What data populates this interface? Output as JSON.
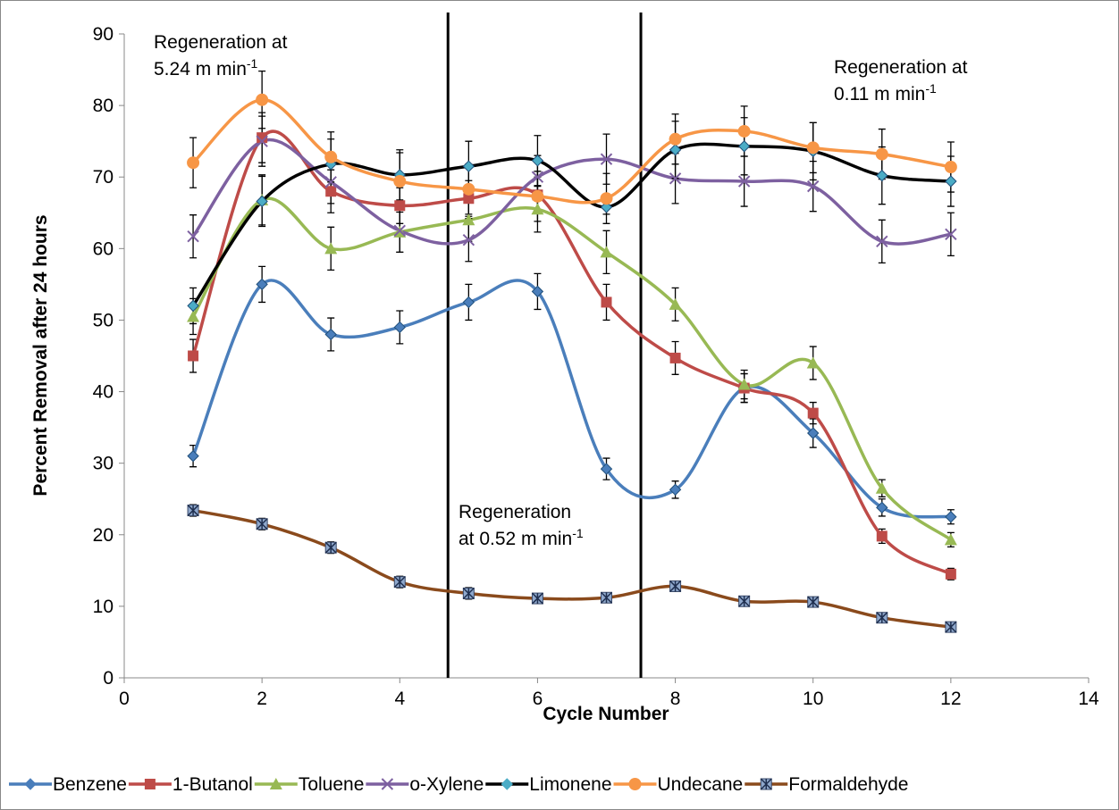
{
  "chart_data": {
    "type": "line",
    "smooth": true,
    "x_label": "Cycle Number",
    "y_label": "Percent Removal after 24 hours",
    "xlim": [
      0,
      14
    ],
    "xticks": [
      0,
      2,
      4,
      6,
      8,
      10,
      12,
      14
    ],
    "ylim": [
      0,
      90
    ],
    "yticks": [
      0,
      10,
      20,
      30,
      40,
      50,
      60,
      70,
      80,
      90
    ],
    "x": [
      1,
      2,
      3,
      4,
      5,
      6,
      7,
      8,
      9,
      10,
      11,
      12
    ],
    "legend": "bottom",
    "vlines": [
      4.7,
      7.5
    ],
    "annotations": [
      {
        "lines": [
          "Regeneration at",
          "5.24 m min"
        ],
        "superscript": "-1"
      },
      {
        "lines": [
          "Regeneration",
          "at 0.52 m min"
        ],
        "superscript": "-1"
      },
      {
        "lines": [
          "Regeneration at",
          "0.11 m min"
        ],
        "superscript": "-1"
      }
    ],
    "series": [
      {
        "name": "Benzene",
        "color": "#4a7ebb",
        "marker": "diamond",
        "marker_color": "#4a7ebb",
        "values": [
          31,
          55,
          48,
          49,
          52.5,
          54,
          29.2,
          26.3,
          40.5,
          34.2,
          23.8,
          22.5
        ],
        "errors": [
          1.5,
          2.5,
          2.3,
          2.3,
          2.5,
          2.5,
          1.5,
          1.2,
          2,
          2,
          1.2,
          1
        ]
      },
      {
        "name": "1-Butanol",
        "color": "#be4b48",
        "marker": "square",
        "marker_color": "#be4b48",
        "values": [
          45,
          75.5,
          68,
          66,
          67,
          67.5,
          52.5,
          44.7,
          40.5,
          37,
          19.8,
          14.5
        ],
        "errors": [
          2.3,
          3.5,
          3,
          2.5,
          2.5,
          2.5,
          2.5,
          2.3,
          2,
          1.5,
          1,
          0.8
        ]
      },
      {
        "name": "Toluene",
        "color": "#98b954",
        "marker": "triangle",
        "marker_color": "#98b954",
        "values": [
          50.5,
          66.8,
          60,
          62.3,
          64,
          65.5,
          59.5,
          52.2,
          41,
          44,
          26.5,
          19.3
        ],
        "errors": [
          2.5,
          3.5,
          3,
          2.8,
          3,
          3.2,
          3,
          2.3,
          2,
          2.3,
          1.2,
          1
        ]
      },
      {
        "name": "o-Xylene",
        "color": "#7d60a0",
        "marker": "x",
        "marker_color": "#7d60a0",
        "values": [
          61.7,
          75,
          69.3,
          62.5,
          61.2,
          70,
          72.5,
          69.8,
          69.4,
          68.7,
          61,
          62
        ],
        "errors": [
          3,
          3.5,
          3,
          3,
          3,
          3,
          3.5,
          3.5,
          3.5,
          3.5,
          3,
          3
        ]
      },
      {
        "name": "Limonene",
        "color": "#000000",
        "marker": "diamond",
        "marker_color": "#4bacc6",
        "values": [
          52,
          66.6,
          71.8,
          70.3,
          71.5,
          72.3,
          65.8,
          73.8,
          74.3,
          73.6,
          70.2,
          69.4
        ],
        "errors": [
          2.5,
          3.5,
          3.5,
          3.5,
          3.5,
          3.5,
          1,
          4,
          4,
          4,
          4,
          3.5
        ]
      },
      {
        "name": "Undecane",
        "color": "#f79646",
        "marker": "circle",
        "marker_color": "#f79646",
        "values": [
          72,
          80.8,
          72.8,
          69.4,
          68.3,
          67.3,
          67,
          75.3,
          76.4,
          74.1,
          73.2,
          71.4
        ],
        "errors": [
          3.5,
          4,
          3.5,
          4,
          3.5,
          3.5,
          3.5,
          3.5,
          3.5,
          3.5,
          3.5,
          3.5
        ]
      },
      {
        "name": "Formaldehyde",
        "color": "#8a4a1c",
        "marker": "asterisk",
        "marker_color": "#8fa8cc",
        "values": [
          23.4,
          21.5,
          18.2,
          13.4,
          11.8,
          11.1,
          11.2,
          12.8,
          10.7,
          10.6,
          8.4,
          7.1
        ],
        "errors": [
          0.8,
          0.8,
          0.8,
          0.8,
          0.8,
          0.5,
          0.6,
          0.7,
          0.6,
          0.5,
          0.5,
          0.5
        ]
      }
    ]
  }
}
